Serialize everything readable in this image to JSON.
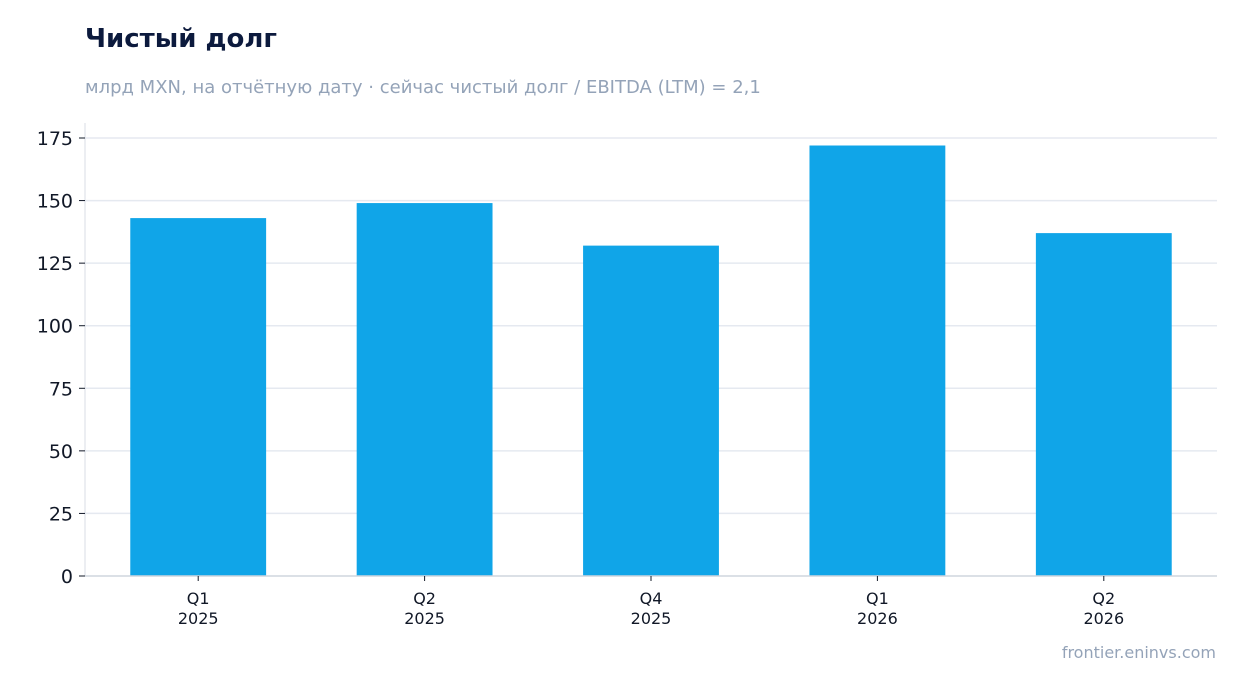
{
  "chart_data": {
    "type": "bar",
    "title": "Чистый долг",
    "subtitle": "млрд MXN, на отчётную дату · сейчас чистый долг / EBITDA (LTM) = 2,1",
    "categories": [
      [
        "Q1",
        "2025"
      ],
      [
        "Q2",
        "2025"
      ],
      [
        "Q4",
        "2025"
      ],
      [
        "Q1",
        "2026"
      ],
      [
        "Q2",
        "2026"
      ]
    ],
    "values": [
      143,
      149,
      132,
      172,
      137
    ],
    "ylim": [
      0,
      175
    ],
    "yticks": [
      0,
      25,
      50,
      75,
      100,
      125,
      150,
      175
    ],
    "grid": true,
    "bar_color": "#10a5e8",
    "xlabel": "",
    "ylabel": ""
  },
  "source": "frontier.eninvs.com"
}
